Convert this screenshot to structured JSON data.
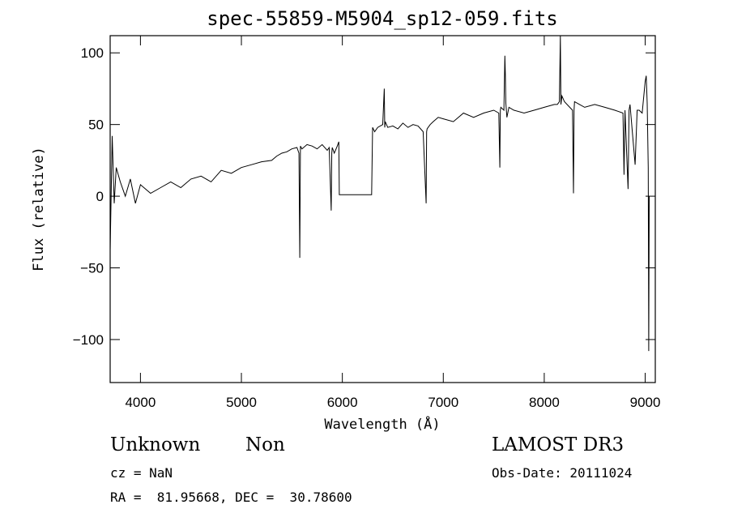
{
  "chart_data": {
    "type": "line",
    "title": "spec-55859-M5904_sp12-059.fits",
    "xlabel": "Wavelength (Å)",
    "ylabel": "Flux (relative)",
    "xlim": [
      3700,
      9100
    ],
    "ylim": [
      -130,
      112
    ],
    "xticks": [
      4000,
      5000,
      6000,
      7000,
      8000,
      9000
    ],
    "yticks": [
      -100,
      -50,
      0,
      50,
      100
    ],
    "ytick_labels": [
      "−100",
      "−50",
      "0",
      "50",
      "100"
    ],
    "grid": false,
    "series": [
      {
        "x": [
          3700,
          3720,
          3740,
          3760,
          3800,
          3850,
          3900,
          3950,
          4000,
          4100,
          4200,
          4300,
          4400,
          4500,
          4600,
          4700,
          4800,
          4900,
          5000,
          5100,
          5200,
          5300,
          5350,
          5400,
          5450,
          5500,
          5550,
          5570,
          5578,
          5585,
          5600,
          5650,
          5700,
          5750,
          5800,
          5850,
          5870,
          5890,
          5895,
          5900,
          5920,
          5950,
          5965,
          5970,
          6100,
          6200,
          6290,
          6300,
          6320,
          6350,
          6400,
          6415,
          6420,
          6425,
          6450,
          6500,
          6550,
          6600,
          6650,
          6700,
          6750,
          6800,
          6830,
          6835,
          6840,
          6870,
          6900,
          6950,
          7000,
          7100,
          7150,
          7200,
          7300,
          7400,
          7500,
          7550,
          7560,
          7565,
          7570,
          7600,
          7610,
          7615,
          7620,
          7630,
          7650,
          7700,
          7800,
          7900,
          8000,
          8100,
          8130,
          8150,
          8160,
          8165,
          8175,
          8200,
          8280,
          8290,
          8295,
          8300,
          8350,
          8400,
          8500,
          8600,
          8700,
          8780,
          8790,
          8800,
          8830,
          8840,
          8850,
          8900,
          8920,
          8940,
          8970,
          9000,
          9010,
          9020,
          9030,
          9035,
          9040
        ],
        "y": [
          -38,
          42,
          -5,
          20,
          10,
          0,
          12,
          -5,
          8,
          2,
          6,
          10,
          6,
          12,
          14,
          10,
          18,
          16,
          20,
          22,
          24,
          25,
          28,
          30,
          31,
          33,
          34,
          30,
          -43,
          35,
          33,
          36,
          35,
          33,
          36,
          32,
          34,
          -10,
          30,
          34,
          30,
          35,
          38,
          1,
          1,
          1,
          1,
          48,
          45,
          48,
          50,
          75,
          48,
          52,
          48,
          49,
          47,
          51,
          48,
          50,
          49,
          45,
          -5,
          45,
          47,
          50,
          52,
          55,
          54,
          52,
          55,
          58,
          55,
          58,
          60,
          58,
          20,
          60,
          62,
          60,
          98,
          85,
          65,
          55,
          62,
          60,
          58,
          60,
          62,
          64,
          64,
          66,
          112,
          64,
          70,
          66,
          60,
          2,
          60,
          66,
          64,
          62,
          64,
          62,
          60,
          58,
          15,
          60,
          5,
          60,
          64,
          22,
          60,
          60,
          58,
          80,
          84,
          65,
          20,
          -108,
          0
        ]
      }
    ]
  },
  "info": {
    "class": "Unknown",
    "subclass": "Non",
    "survey": "LAMOST DR3",
    "cz": "cz = NaN",
    "obs_date": "Obs-Date: 20111024",
    "radec": "RA =  81.95668, DEC =  30.78600"
  }
}
